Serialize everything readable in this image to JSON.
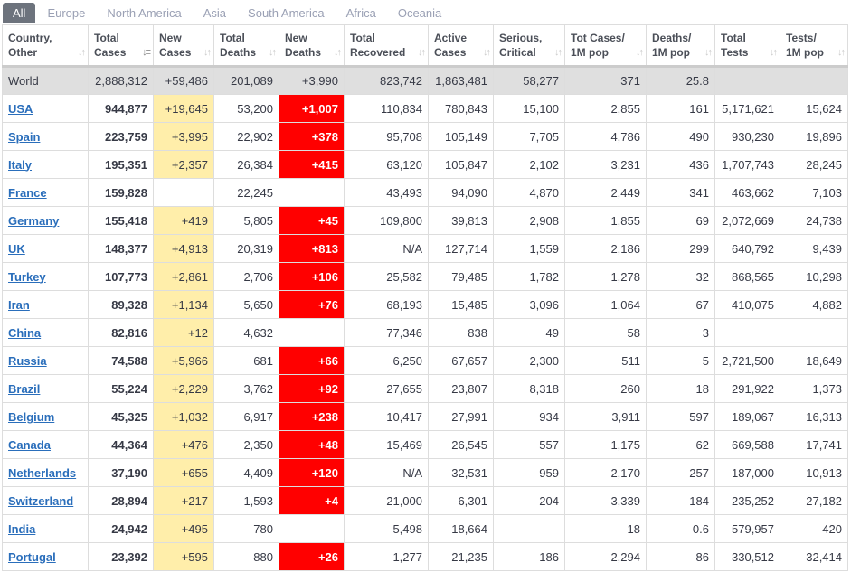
{
  "tabs": [
    "All",
    "Europe",
    "North America",
    "Asia",
    "South America",
    "Africa",
    "Oceania"
  ],
  "active_tab": "All",
  "columns": [
    [
      "Country,",
      "Other"
    ],
    [
      "Total",
      "Cases"
    ],
    [
      "New",
      "Cases"
    ],
    [
      "Total",
      "Deaths"
    ],
    [
      "New",
      "Deaths"
    ],
    [
      "Total",
      "Recovered"
    ],
    [
      "Active",
      "Cases"
    ],
    [
      "Serious,",
      "Critical"
    ],
    [
      "Tot Cases/",
      "1M pop"
    ],
    [
      "Deaths/",
      "1M pop"
    ],
    [
      "Total",
      "Tests"
    ],
    [
      "Tests/",
      "1M pop"
    ]
  ],
  "sorted_column": 1,
  "world": [
    "World",
    "2,888,312",
    "+59,486",
    "201,089",
    "+3,990",
    "823,742",
    "1,863,481",
    "58,277",
    "371",
    "25.8",
    "",
    ""
  ],
  "rows": [
    [
      "USA",
      "944,877",
      "+19,645",
      "53,200",
      "+1,007",
      "110,834",
      "780,843",
      "15,100",
      "2,855",
      "161",
      "5,171,621",
      "15,624"
    ],
    [
      "Spain",
      "223,759",
      "+3,995",
      "22,902",
      "+378",
      "95,708",
      "105,149",
      "7,705",
      "4,786",
      "490",
      "930,230",
      "19,896"
    ],
    [
      "Italy",
      "195,351",
      "+2,357",
      "26,384",
      "+415",
      "63,120",
      "105,847",
      "2,102",
      "3,231",
      "436",
      "1,707,743",
      "28,245"
    ],
    [
      "France",
      "159,828",
      "",
      "22,245",
      "",
      "43,493",
      "94,090",
      "4,870",
      "2,449",
      "341",
      "463,662",
      "7,103"
    ],
    [
      "Germany",
      "155,418",
      "+419",
      "5,805",
      "+45",
      "109,800",
      "39,813",
      "2,908",
      "1,855",
      "69",
      "2,072,669",
      "24,738"
    ],
    [
      "UK",
      "148,377",
      "+4,913",
      "20,319",
      "+813",
      "N/A",
      "127,714",
      "1,559",
      "2,186",
      "299",
      "640,792",
      "9,439"
    ],
    [
      "Turkey",
      "107,773",
      "+2,861",
      "2,706",
      "+106",
      "25,582",
      "79,485",
      "1,782",
      "1,278",
      "32",
      "868,565",
      "10,298"
    ],
    [
      "Iran",
      "89,328",
      "+1,134",
      "5,650",
      "+76",
      "68,193",
      "15,485",
      "3,096",
      "1,064",
      "67",
      "410,075",
      "4,882"
    ],
    [
      "China",
      "82,816",
      "+12",
      "4,632",
      "",
      "77,346",
      "838",
      "49",
      "58",
      "3",
      "",
      ""
    ],
    [
      "Russia",
      "74,588",
      "+5,966",
      "681",
      "+66",
      "6,250",
      "67,657",
      "2,300",
      "511",
      "5",
      "2,721,500",
      "18,649"
    ],
    [
      "Brazil",
      "55,224",
      "+2,229",
      "3,762",
      "+92",
      "27,655",
      "23,807",
      "8,318",
      "260",
      "18",
      "291,922",
      "1,373"
    ],
    [
      "Belgium",
      "45,325",
      "+1,032",
      "6,917",
      "+238",
      "10,417",
      "27,991",
      "934",
      "3,911",
      "597",
      "189,067",
      "16,313"
    ],
    [
      "Canada",
      "44,364",
      "+476",
      "2,350",
      "+48",
      "15,469",
      "26,545",
      "557",
      "1,175",
      "62",
      "669,588",
      "17,741"
    ],
    [
      "Netherlands",
      "37,190",
      "+655",
      "4,409",
      "+120",
      "N/A",
      "32,531",
      "959",
      "2,170",
      "257",
      "187,000",
      "10,913"
    ],
    [
      "Switzerland",
      "28,894",
      "+217",
      "1,593",
      "+4",
      "21,000",
      "6,301",
      "204",
      "3,339",
      "184",
      "235,252",
      "27,182"
    ],
    [
      "India",
      "24,942",
      "+495",
      "780",
      "",
      "5,498",
      "18,664",
      "",
      "18",
      "0.6",
      "579,957",
      "420"
    ],
    [
      "Portugal",
      "23,392",
      "+595",
      "880",
      "+26",
      "1,277",
      "21,235",
      "186",
      "2,294",
      "86",
      "330,512",
      "32,414"
    ]
  ],
  "colors": {
    "new_cases_bg": "#ffeeaa",
    "new_deaths_bg": "#ff0000",
    "link": "#2a6ebb",
    "active_tab_bg": "#6d737d"
  }
}
